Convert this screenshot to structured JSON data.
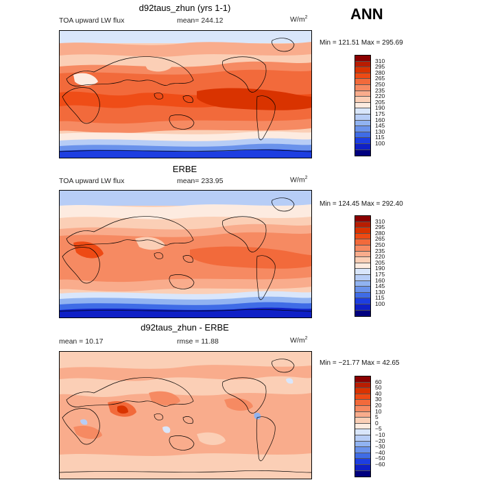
{
  "season": "ANN",
  "panels": [
    {
      "title": "d92taus_zhun (yrs 1-1)",
      "field": "TOA upward LW flux",
      "stat1": "mean= 244.12",
      "stat2": "",
      "units": "W/m",
      "units_exp": "2",
      "minmax": "Min = 121.51 Max = 295.69",
      "levels": [
        "310",
        "295",
        "280",
        "265",
        "250",
        "235",
        "220",
        "205",
        "190",
        "175",
        "160",
        "145",
        "130",
        "115",
        "100"
      ],
      "colors": [
        "#8b0000",
        "#b81d00",
        "#d93300",
        "#ee4a14",
        "#f26a3b",
        "#f68a62",
        "#f9ac8c",
        "#fbcfb6",
        "#fdebe0",
        "#d9e6fb",
        "#b7cdf6",
        "#91b3f1",
        "#6a92eb",
        "#3f6ce6",
        "#1d3ee1",
        "#0f20c6",
        "#00007f"
      ]
    },
    {
      "title": "ERBE",
      "field": "TOA upward LW flux",
      "stat1": "mean= 233.95",
      "stat2": "",
      "units": "W/m",
      "units_exp": "2",
      "minmax": "Min = 124.45 Max = 292.40",
      "levels": [
        "310",
        "295",
        "280",
        "265",
        "250",
        "235",
        "220",
        "205",
        "190",
        "175",
        "160",
        "145",
        "130",
        "115",
        "100"
      ],
      "colors": [
        "#8b0000",
        "#b81d00",
        "#d93300",
        "#ee4a14",
        "#f26a3b",
        "#f68a62",
        "#f9ac8c",
        "#fbcfb6",
        "#fdebe0",
        "#d9e6fb",
        "#b7cdf6",
        "#91b3f1",
        "#6a92eb",
        "#3f6ce6",
        "#1d3ee1",
        "#0f20c6",
        "#00007f"
      ]
    },
    {
      "title": "d92taus_zhun - ERBE",
      "field": "",
      "stat1": "mean =  10.17",
      "stat2": "rmse =  11.88",
      "units": "W/m",
      "units_exp": "2",
      "minmax": "Min = −21.77 Max =  42.65",
      "levels": [
        "60",
        "50",
        "40",
        "30",
        "20",
        "10",
        "5",
        "0",
        "−5",
        "−10",
        "−20",
        "−30",
        "−40",
        "−50",
        "−60"
      ],
      "colors": [
        "#8b0000",
        "#b81d00",
        "#d93300",
        "#ee4a14",
        "#f26a3b",
        "#f68a62",
        "#f9ac8c",
        "#fbcfb6",
        "#fdebe0",
        "#d9e6fb",
        "#b7cdf6",
        "#91b3f1",
        "#6a92eb",
        "#3f6ce6",
        "#1d3ee1",
        "#0f20c6",
        "#00007f"
      ]
    }
  ]
}
